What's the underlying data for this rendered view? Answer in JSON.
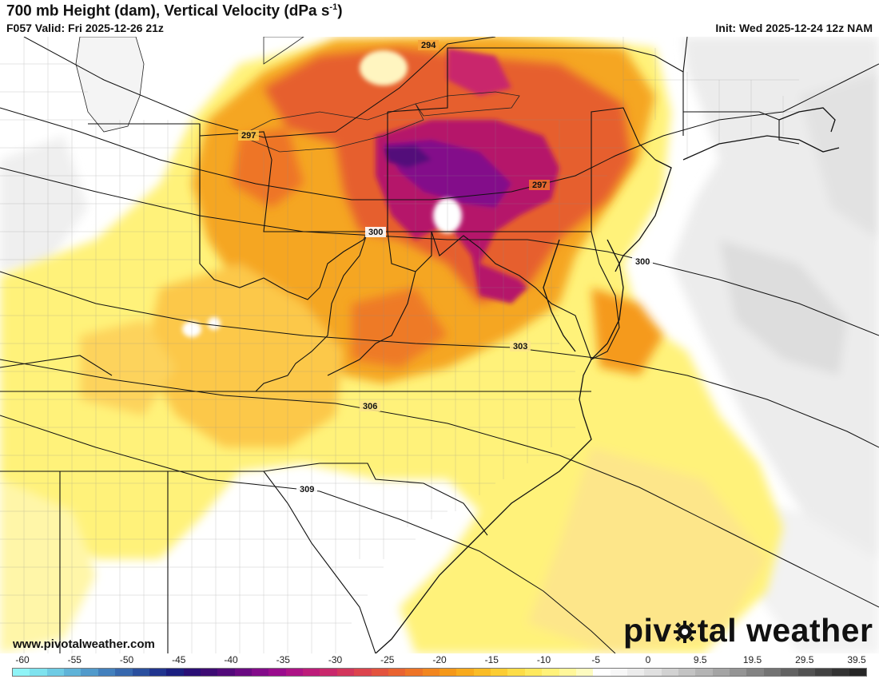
{
  "header": {
    "title": "700 mb Height (dam), Vertical Velocity (dPa s",
    "title_sup": "-1",
    "title_end": ")",
    "valid": "F057 Valid: Fri 2025-12-26 21z",
    "init": "Init: Wed 2025-12-24 12z NAM"
  },
  "map": {
    "contour_labels": [
      "294",
      "297",
      "297",
      "300",
      "300",
      "303",
      "306",
      "309"
    ]
  },
  "footer": {
    "website": "www.pivotalweather.com",
    "brand_left": "piv",
    "brand_right": "tal weather"
  },
  "colorbar": {
    "ticks": [
      "-60",
      "-55",
      "-50",
      "-45",
      "-40",
      "-35",
      "-30",
      "-25",
      "-20",
      "-15",
      "-10",
      "-5",
      "0",
      "9.5",
      "19.5",
      "29.5",
      "39.5"
    ],
    "colors": [
      "#8ff4f7",
      "#7ee2ee",
      "#6ecbe4",
      "#5fb3d8",
      "#519acb",
      "#4380bd",
      "#3768ae",
      "#2a4f9e",
      "#21358f",
      "#1b1f80",
      "#2a0f75",
      "#3d0b73",
      "#52097a",
      "#6a0a82",
      "#830b8a",
      "#9a0c8d",
      "#ad1386",
      "#bd1c7a",
      "#c9286c",
      "#d3365c",
      "#dc444d",
      "#e3533e",
      "#e96331",
      "#ee7427",
      "#f2861f",
      "#f59819",
      "#f8aa1c",
      "#fabc26",
      "#fccd33",
      "#fddd47",
      "#fee95e",
      "#fff27a",
      "#fff79a",
      "#fdfbc0",
      "#ffffff",
      "#f7f7f7",
      "#ececec",
      "#e0e0e0",
      "#d2d2d2",
      "#c3c3c3",
      "#b4b4b4",
      "#a4a4a4",
      "#949494",
      "#838383",
      "#737373",
      "#626262",
      "#525252",
      "#424242",
      "#333333",
      "#262626"
    ]
  }
}
